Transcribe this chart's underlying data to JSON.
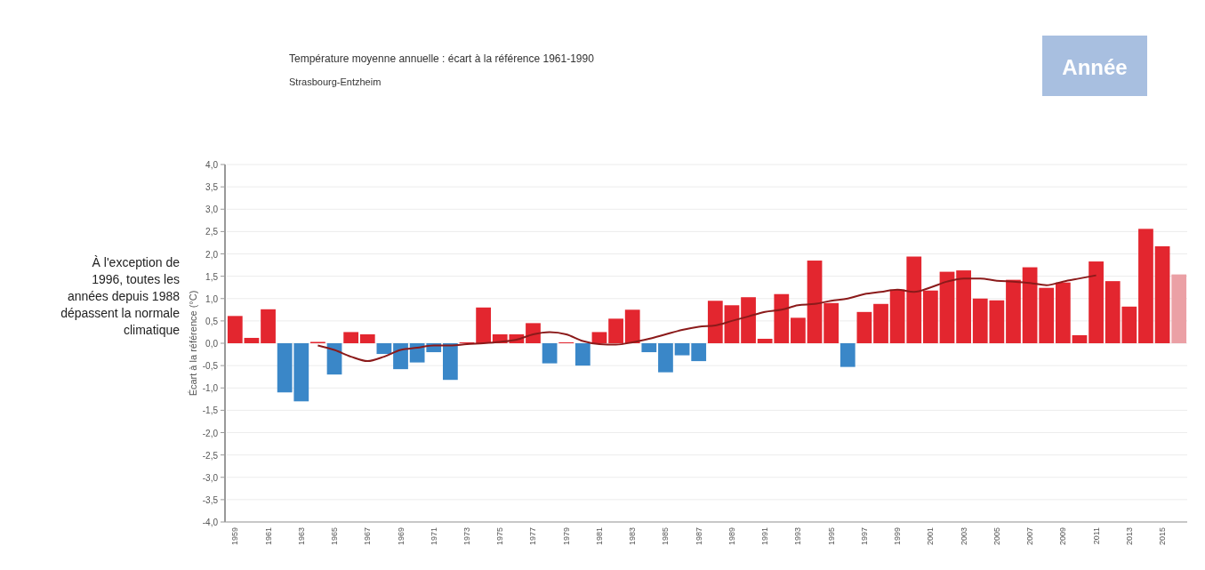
{
  "chart_data": {
    "type": "bar",
    "title": "Température moyenne annuelle : écart à la référence 1961-1990",
    "subtitle": "Strasbourg-Entzheim",
    "ylabel": "Écart à la référence (°C)",
    "annotations": [
      "À l'exception de 1996, toutes les années depuis 1988 dépassent la normale climatique",
      "Année"
    ],
    "categories": [
      "1959",
      null,
      "1961",
      null,
      "1963",
      null,
      "1965",
      null,
      "1967",
      null,
      "1969",
      null,
      "1971",
      null,
      "1973",
      null,
      "1975",
      null,
      "1977",
      null,
      "1979",
      null,
      "1981",
      null,
      "1983",
      null,
      "1985",
      null,
      "1987",
      null,
      "1989",
      null,
      "1991",
      null,
      "1993",
      null,
      "1995",
      null,
      "1997",
      null,
      "1999",
      null,
      "2001",
      null,
      "2003",
      null,
      "2005",
      null,
      "2007",
      null,
      "2009",
      null,
      "2011",
      null,
      "2013",
      null,
      "2015",
      null
    ],
    "series": [
      {
        "values": [
          0.61,
          0.12,
          0.76,
          -1.1,
          -1.3,
          0.03,
          -0.7,
          0.25,
          0.2,
          -0.24,
          -0.58,
          -0.43,
          -0.2,
          -0.82,
          0.02,
          0.8,
          0.2,
          0.2,
          0.45,
          -0.45,
          0.02,
          -0.5,
          0.25,
          0.55,
          0.75,
          -0.2,
          -0.65,
          -0.27,
          -0.4,
          0.95,
          0.85,
          1.03,
          0.1,
          1.1,
          0.57,
          1.85,
          0.9,
          -0.53,
          0.7,
          0.88,
          1.2,
          1.94,
          1.18,
          1.6,
          1.63,
          1.0,
          0.96,
          1.42,
          1.7,
          1.24,
          1.36,
          0.18,
          1.83,
          1.39,
          0.82,
          2.56,
          2.17,
          1.54
        ],
        "colors": [
          "#e3262f",
          "#e3262f",
          "#e3262f",
          "#3a87c8",
          "#3a87c8",
          "#e3262f",
          "#3a87c8",
          "#e3262f",
          "#e3262f",
          "#3a87c8",
          "#3a87c8",
          "#3a87c8",
          "#3a87c8",
          "#3a87c8",
          "#e3262f",
          "#e3262f",
          "#e3262f",
          "#e3262f",
          "#e3262f",
          "#3a87c8",
          "#e3262f",
          "#3a87c8",
          "#e3262f",
          "#e3262f",
          "#e3262f",
          "#3a87c8",
          "#3a87c8",
          "#3a87c8",
          "#3a87c8",
          "#e3262f",
          "#e3262f",
          "#e3262f",
          "#e3262f",
          "#e3262f",
          "#e3262f",
          "#e3262f",
          "#e3262f",
          "#3a87c8",
          "#e3262f",
          "#e3262f",
          "#e3262f",
          "#e3262f",
          "#e3262f",
          "#e3262f",
          "#e3262f",
          "#e3262f",
          "#e3262f",
          "#e3262f",
          "#e3262f",
          "#e3262f",
          "#e3262f",
          "#e3262f",
          "#e3262f",
          "#e3262f",
          "#e3262f",
          "#e3262f",
          "#e3262f",
          "#eba0a5"
        ]
      },
      {
        "type": "line",
        "color": "#8b1a1a",
        "values": [
          null,
          null,
          null,
          null,
          null,
          -0.05,
          -0.15,
          -0.3,
          -0.4,
          -0.3,
          -0.15,
          -0.1,
          -0.05,
          -0.05,
          -0.02,
          0.0,
          0.03,
          0.08,
          0.2,
          0.25,
          0.2,
          0.05,
          -0.02,
          -0.03,
          0.02,
          0.1,
          0.2,
          0.3,
          0.37,
          0.4,
          0.5,
          0.6,
          0.7,
          0.75,
          0.85,
          0.88,
          0.95,
          1.0,
          1.1,
          1.15,
          1.2,
          1.15,
          1.25,
          1.38,
          1.45,
          1.45,
          1.4,
          1.38,
          1.35,
          1.3,
          1.38,
          1.45,
          1.52,
          null,
          null,
          null,
          null,
          null
        ]
      }
    ],
    "ylim": [
      -4,
      4
    ],
    "yticks": [
      {
        "value": -4,
        "label": "-4,0"
      },
      {
        "value": -3.5,
        "label": "-3,5"
      },
      {
        "value": -3,
        "label": "-3,0"
      },
      {
        "value": -2.5,
        "label": "-2,5"
      },
      {
        "value": -2,
        "label": "-2,0"
      },
      {
        "value": -1.5,
        "label": "-1,5"
      },
      {
        "value": -1,
        "label": "-1,0"
      },
      {
        "value": -0.5,
        "label": "-0,5"
      },
      {
        "value": 0,
        "label": "0,0"
      },
      {
        "value": 0.5,
        "label": "0,5"
      },
      {
        "value": 1,
        "label": "1,0"
      },
      {
        "value": 1.5,
        "label": "1,5"
      },
      {
        "value": 2,
        "label": "2,0"
      },
      {
        "value": 2.5,
        "label": "2,5"
      },
      {
        "value": 3,
        "label": "3,0"
      },
      {
        "value": 3.5,
        "label": "3,5"
      },
      {
        "value": 4,
        "label": "4,0"
      }
    ],
    "grid": "y"
  }
}
